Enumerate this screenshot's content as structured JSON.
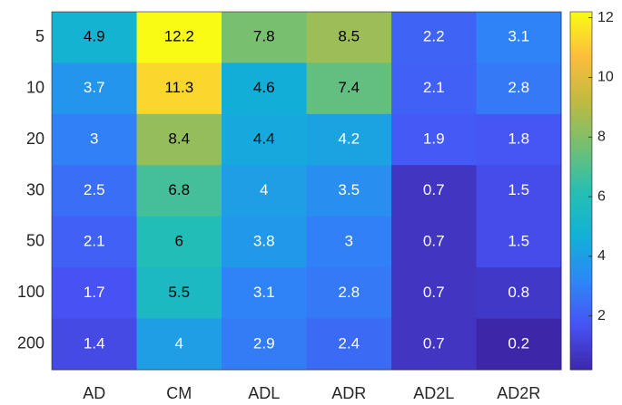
{
  "chart_data": {
    "type": "heatmap",
    "categories": [
      "AD",
      "CM",
      "ADL",
      "ADR",
      "AD2L",
      "AD2R"
    ],
    "rows": [
      "5",
      "10",
      "20",
      "30",
      "50",
      "100",
      "200"
    ],
    "values": [
      [
        4.9,
        12.2,
        7.8,
        8.5,
        2.2,
        3.1
      ],
      [
        3.7,
        11.3,
        4.6,
        7.4,
        2.1,
        2.8
      ],
      [
        3,
        8.4,
        4.4,
        4.2,
        1.9,
        1.8
      ],
      [
        2.5,
        6.8,
        4,
        3.5,
        0.7,
        1.5
      ],
      [
        2.1,
        6,
        3.8,
        3,
        0.7,
        1.5
      ],
      [
        1.7,
        5.5,
        3.1,
        2.8,
        0.7,
        0.8
      ],
      [
        1.4,
        4,
        2.9,
        2.4,
        0.7,
        0.2
      ]
    ],
    "colormap": "parula",
    "zlim": [
      0.2,
      12.2
    ],
    "zticks": [
      2,
      4,
      6,
      8,
      10,
      12
    ]
  }
}
